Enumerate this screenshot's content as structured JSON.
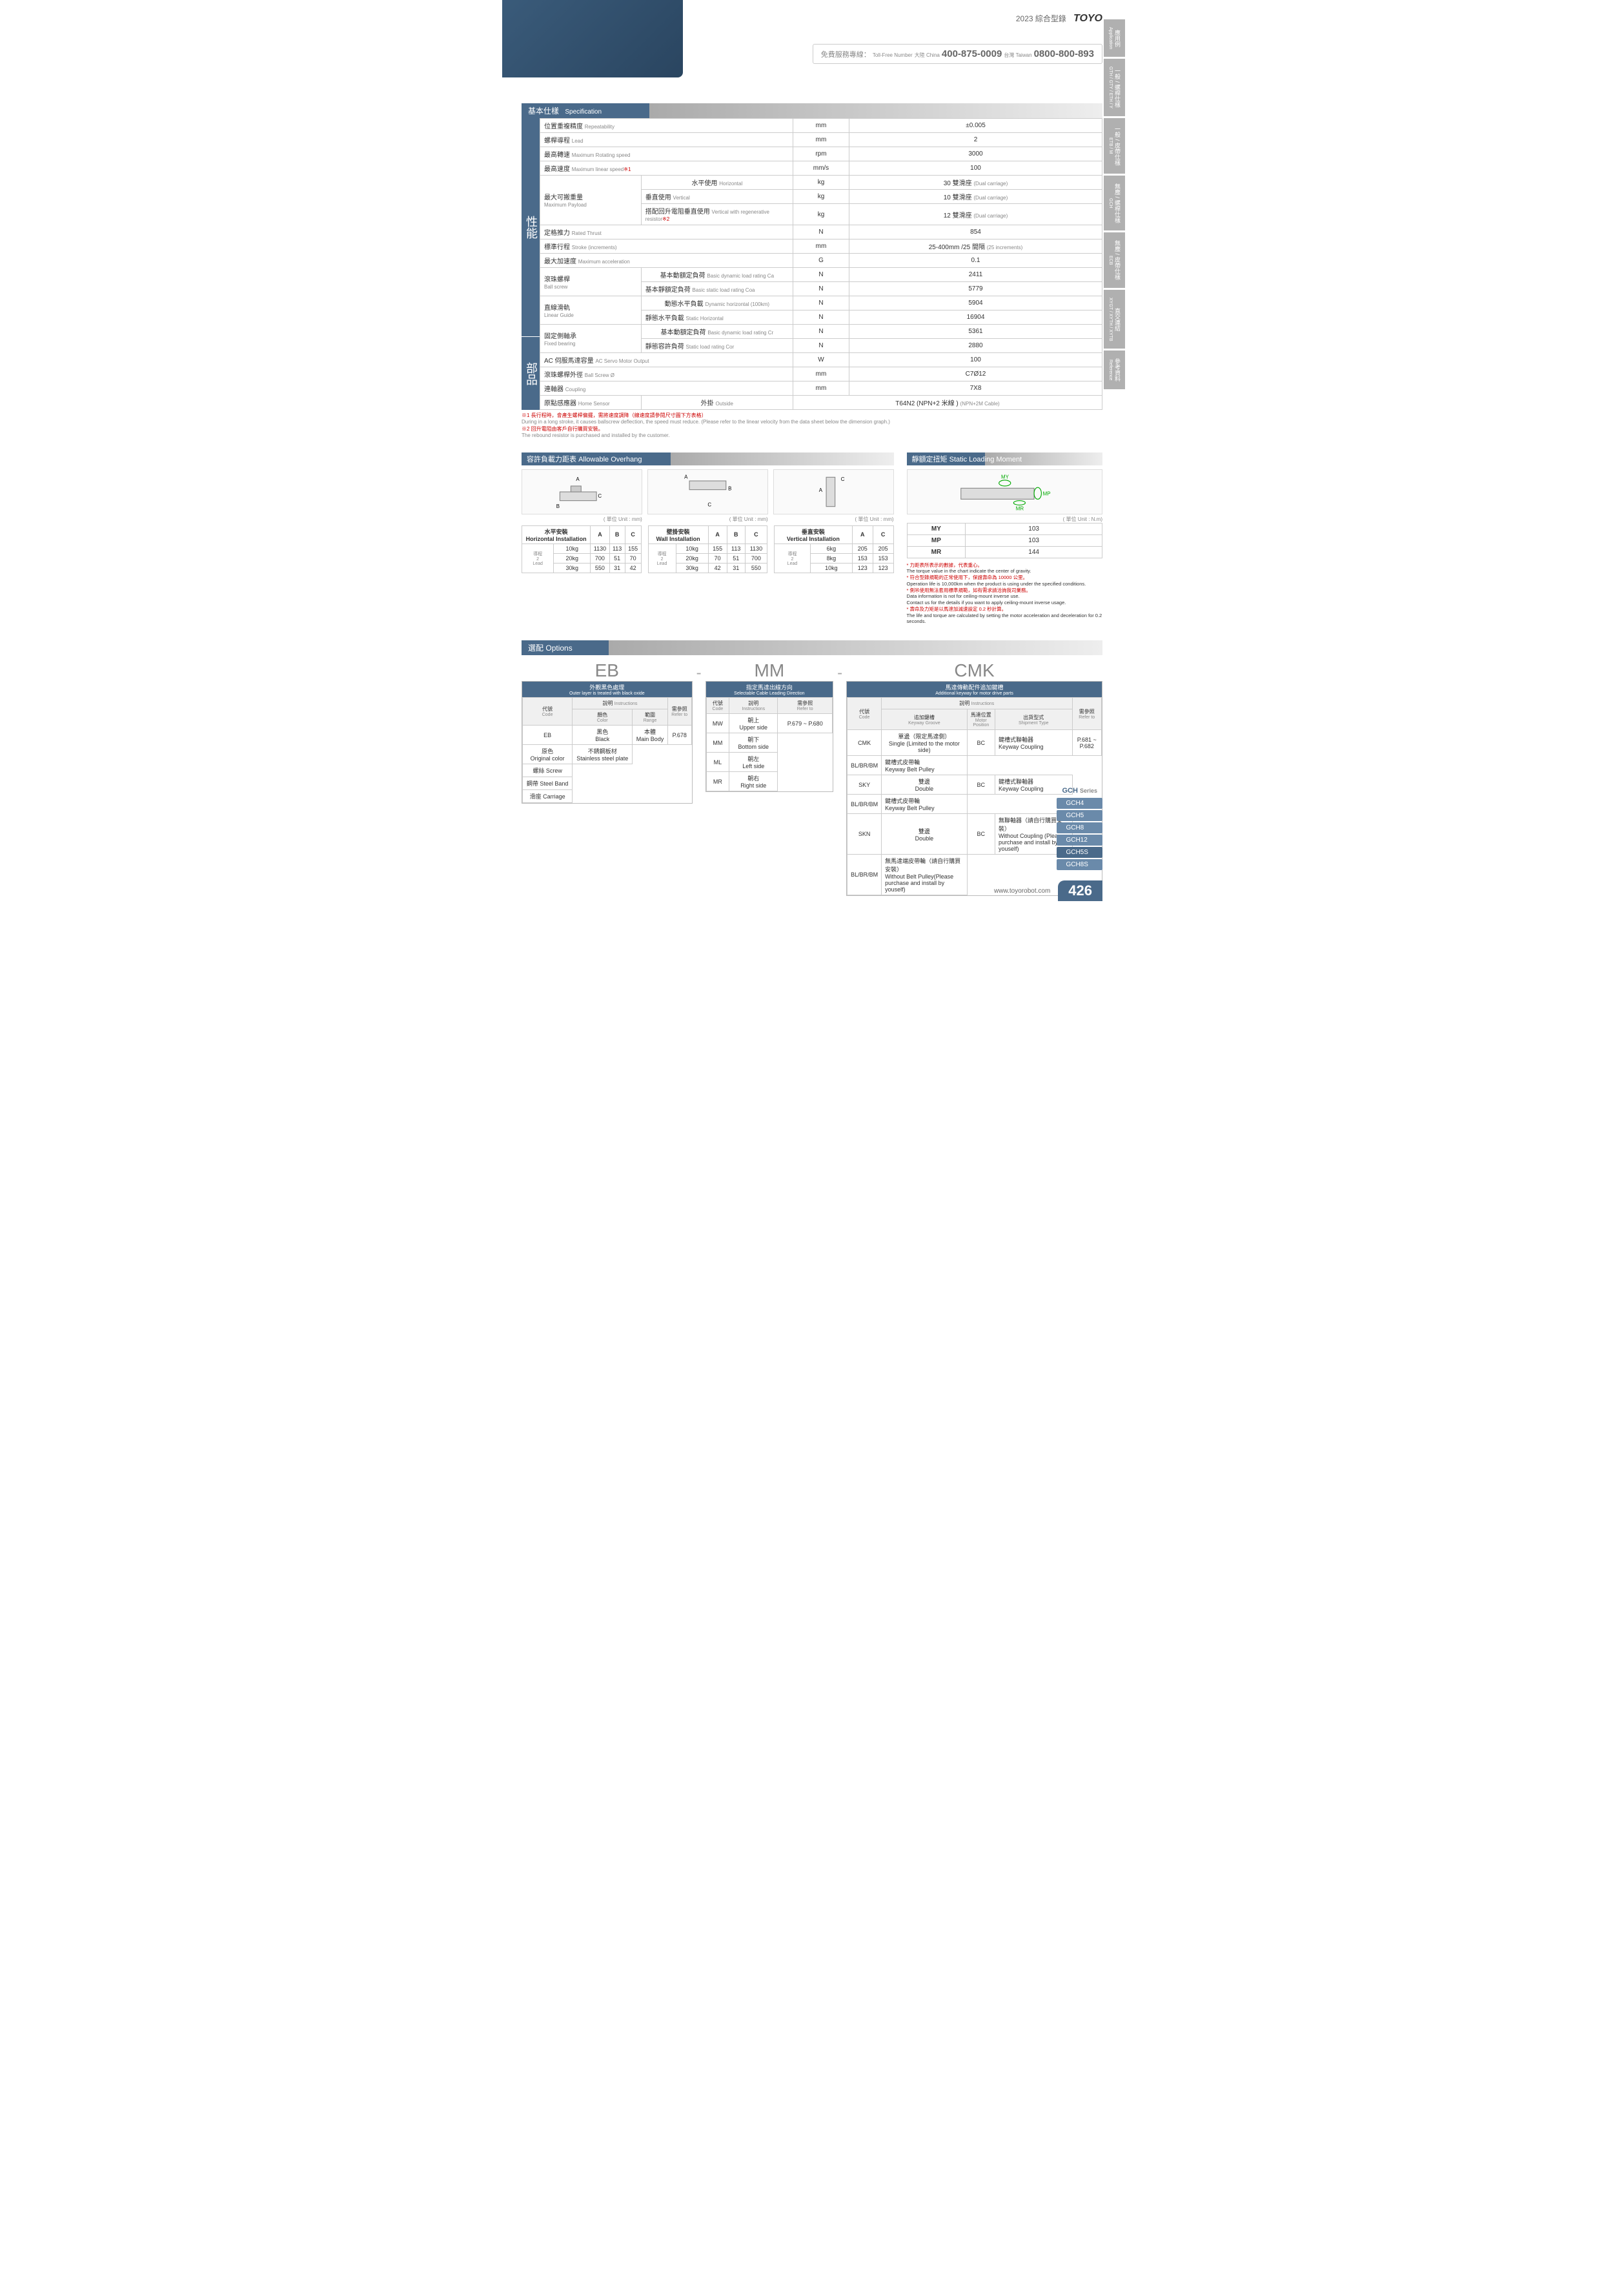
{
  "header": {
    "year": "2023 綜合型錄",
    "brand": "TOYO",
    "phone_label": "免費服務專線：",
    "phone_cn_label": "大陸 China",
    "phone_cn": "400-875-0009",
    "phone_tw_label": "台灣 Taiwan",
    "phone_tw": "0800-800-893",
    "tollfree": "Toll-Free Number"
  },
  "side_tabs": [
    {
      "zh": "應用例",
      "en": "Application"
    },
    {
      "zh": "一般 / 螺桿仕樣",
      "en": "GTH / GTY / ETH / Y"
    },
    {
      "zh": "一般 / 皮帶仕樣",
      "en": "ETB / M"
    },
    {
      "zh": "無塵 / 螺桿仕樣",
      "en": "GCH"
    },
    {
      "zh": "無塵 / 皮帶仕樣",
      "en": "ECB"
    },
    {
      "zh": "直交連結",
      "en": "XYGT / XYTH / XYTB"
    },
    {
      "zh": "參考資料",
      "en": "Reference"
    }
  ],
  "spec": {
    "title_zh": "基本仕樣",
    "title_en": "Specification",
    "vlabel1": "性能",
    "vlabel2": "部品",
    "rows": [
      {
        "label": "位置重複精度",
        "en": "Repeatability",
        "unit": "mm",
        "val": "±0.005"
      },
      {
        "label": "螺桿導程",
        "en": "Lead",
        "unit": "mm",
        "val": "2"
      },
      {
        "label": "最高轉速",
        "en": "Maximum Rotating speed",
        "unit": "rpm",
        "val": "3000"
      },
      {
        "label": "最高速度",
        "en": "Maximum linear speed",
        "note": "※1",
        "unit": "mm/s",
        "val": "100"
      }
    ],
    "payload": {
      "label": "最大可搬重量",
      "en": "Maximum Payload",
      "rows": [
        {
          "sub": "水平使用",
          "sen": "Horizontal",
          "unit": "kg",
          "val": "30 雙滑座",
          "ven": "(Dual carriage)"
        },
        {
          "sub": "垂直使用",
          "sen": "Vertical",
          "unit": "kg",
          "val": "10 雙滑座",
          "ven": "(Dual carriage)"
        },
        {
          "sub": "搭配回升電阻垂直使用",
          "sen": "Vertical with regenerative resistor",
          "note": "※2",
          "unit": "kg",
          "val": "12 雙滑座",
          "ven": "(Dual carriage)"
        }
      ]
    },
    "rows2": [
      {
        "label": "定格推力",
        "en": "Rated Thrust",
        "unit": "N",
        "val": "854"
      },
      {
        "label": "標準行程",
        "en": "Stroke (increments)",
        "unit": "mm",
        "val": "25-400mm /25 間隔",
        "ven": "(25 increments)"
      },
      {
        "label": "最大加速度",
        "en": "Maximum acceleration",
        "unit": "G",
        "val": "0.1"
      }
    ],
    "ballscrew": {
      "label": "滾珠螺桿",
      "en": "Ball screw",
      "rows": [
        {
          "sub": "基本動額定負荷",
          "sen": "Basic dynamic load rating Ca",
          "unit": "N",
          "val": "2411"
        },
        {
          "sub": "基本靜額定負荷",
          "sen": "Basic static load rating Coa",
          "unit": "N",
          "val": "5779"
        }
      ]
    },
    "guide": {
      "label": "直線滑軌",
      "en": "Linear Guide",
      "rows": [
        {
          "sub": "動態水平負載",
          "sen": "Dynamic horizontal (100km)",
          "unit": "N",
          "val": "5904"
        },
        {
          "sub": "靜態水平負載",
          "sen": "Static Horizontal",
          "unit": "N",
          "val": "16904"
        }
      ]
    },
    "bearing": {
      "label": "固定側軸承",
      "en": "Fixed bearing",
      "rows": [
        {
          "sub": "基本動額定負荷",
          "sen": "Basic dynamic load rating Cr",
          "unit": "N",
          "val": "5361"
        },
        {
          "sub": "靜態容許負荷",
          "sen": "Static load rating Cor",
          "unit": "N",
          "val": "2880"
        }
      ]
    },
    "parts": [
      {
        "label": "AC 伺服馬達容量",
        "en": "AC Servo Motor Output",
        "unit": "W",
        "val": "100"
      },
      {
        "label": "滾珠螺桿外徑",
        "en": "Ball Screw Ø",
        "unit": "mm",
        "val": "C7Ø12"
      },
      {
        "label": "連軸器",
        "en": "Coupling",
        "unit": "mm",
        "val": "7X8"
      },
      {
        "label": "原點感應器",
        "en": "Home Sensor",
        "sub": "外掛",
        "sen": "Outside",
        "val": "T64N2 (NPN+2 米線 )",
        "ven": "(NPN+2M Cable)"
      }
    ],
    "notes": [
      {
        "red": true,
        "t": "※1 長行程時，會產生螺桿偏擺，需將速度調降（線速度請參閱尺寸圖下方表格）"
      },
      {
        "t": "During in a long stroke, it causes ballscrew deflection, the speed must reduce. (Please refer to the linear velocity from the data sheet below the dimension graph.)"
      },
      {
        "red": true,
        "t": "※2 回升電阻由客戶自行購買安裝。"
      },
      {
        "t": "The rebound resistor is purchased and installed by the customer."
      }
    ]
  },
  "overhang": {
    "title_zh": "容許負載力距表",
    "title_en": "Allowable Overhang",
    "unit": "( 單位 Unit : mm)",
    "tables": [
      {
        "hdr": "水平安裝",
        "hen": "Horizontal Installation",
        "cols": [
          "A",
          "B",
          "C"
        ],
        "lead_label": "導程",
        "lead_sub": "Lead",
        "lead_val": "2",
        "rows": [
          {
            "w": "10kg",
            "v": [
              "1130",
              "113",
              "155"
            ]
          },
          {
            "w": "20kg",
            "v": [
              "700",
              "51",
              "70"
            ]
          },
          {
            "w": "30kg",
            "v": [
              "550",
              "31",
              "42"
            ]
          }
        ]
      },
      {
        "hdr": "壁掛安裝",
        "hen": "Wall Installation",
        "cols": [
          "A",
          "B",
          "C"
        ],
        "lead_label": "導程",
        "lead_sub": "Lead",
        "lead_val": "2",
        "rows": [
          {
            "w": "10kg",
            "v": [
              "155",
              "113",
              "1130"
            ]
          },
          {
            "w": "20kg",
            "v": [
              "70",
              "51",
              "700"
            ]
          },
          {
            "w": "30kg",
            "v": [
              "42",
              "31",
              "550"
            ]
          }
        ]
      },
      {
        "hdr": "垂直安裝",
        "hen": "Vertical Installation",
        "cols": [
          "A",
          "C"
        ],
        "lead_label": "導程",
        "lead_sub": "Lead",
        "lead_val": "2",
        "rows": [
          {
            "w": "6kg",
            "v": [
              "205",
              "205"
            ]
          },
          {
            "w": "8kg",
            "v": [
              "153",
              "153"
            ]
          },
          {
            "w": "10kg",
            "v": [
              "123",
              "123"
            ]
          }
        ]
      }
    ]
  },
  "moment": {
    "title_zh": "靜額定扭矩",
    "title_en": "Static Loading Moment",
    "unit": "( 單位 Unit : N.m)",
    "rows": [
      {
        "k": "MY",
        "v": "103"
      },
      {
        "k": "MP",
        "v": "103"
      },
      {
        "k": "MR",
        "v": "144"
      }
    ],
    "notes": [
      {
        "red": true,
        "t": "* 力距表所表示的數據，代表重心。"
      },
      {
        "t": "The torque value in the chart indicate the center of gravity."
      },
      {
        "red": true,
        "t": "* 符合型錄規範的正常使用下，保證壽命為 10000 公里。"
      },
      {
        "t": "Operation life is 10,000km when the product is using under the specified conditions."
      },
      {
        "red": true,
        "t": "* 側吊使用無法套用標準規範，如有需求請洽詢我司業務。"
      },
      {
        "t": "Data information is not for ceiling-mount inverse use."
      },
      {
        "t": "Contact us for the details if you want to apply ceiling-mount inverse usage."
      },
      {
        "red": true,
        "t": "* 壽命及力矩是以馬達加減速設定 0.2 秒計算。"
      },
      {
        "t": "The life and torque are calculated by setting the motor acceleration and deceleration for 0.2 seconds."
      }
    ]
  },
  "options": {
    "title_zh": "選配",
    "title_en": "Options",
    "eb": {
      "code": "EB",
      "title_zh": "外觀黑色處理",
      "title_en": "Outer layer is treated with black oxide",
      "h_code": "代號",
      "h_code_en": "Code",
      "h_inst": "說明",
      "h_inst_en": "Instructions",
      "h_color": "顏色",
      "h_color_en": "Color",
      "h_range": "範圍",
      "h_range_en": "Range",
      "h_ref": "需參照",
      "h_ref_en": "Refer to",
      "rows": [
        {
          "code": "",
          "color": "黑色",
          "color_en": "Black",
          "range": "本體",
          "range_en": "Main Body",
          "ref": ""
        },
        {
          "code": "EB",
          "color": "原色",
          "color_en": "Original color",
          "range": "不銹鋼板材",
          "range_en": "Stainless steel plate",
          "ref": "P.678"
        },
        {
          "code": "",
          "color": "",
          "range": "螺絲",
          "range_en": "Screw",
          "ref": ""
        },
        {
          "code": "",
          "color": "",
          "range": "鋼帶",
          "range_en": "Steel Band",
          "ref": ""
        },
        {
          "code": "",
          "color": "",
          "range": "滑座",
          "range_en": "Carriage",
          "ref": ""
        }
      ]
    },
    "mm": {
      "code": "MM",
      "title_zh": "指定馬達出線方向",
      "title_en": "Selectable Cable Leading Direction",
      "h_code": "代號",
      "h_code_en": "Code",
      "h_inst": "說明",
      "h_inst_en": "Instructions",
      "h_ref": "需參照",
      "h_ref_en": "Refer to",
      "ref": "P.679 ~ P.680",
      "rows": [
        {
          "code": "MW",
          "inst": "朝上",
          "inst_en": "Upper side"
        },
        {
          "code": "MM",
          "inst": "朝下",
          "inst_en": "Bottom side"
        },
        {
          "code": "ML",
          "inst": "朝左",
          "inst_en": "Left side"
        },
        {
          "code": "MR",
          "inst": "朝右",
          "inst_en": "Right side"
        }
      ]
    },
    "cmk": {
      "code": "CMK",
      "title_zh": "馬達傳動配件追加鍵槽",
      "title_en": "Additional keyway for motor drive parts",
      "h_code": "代號",
      "h_code_en": "Code",
      "h_inst": "說明",
      "h_inst_en": "Instructions",
      "h_key": "追加鍵槽",
      "h_key_en": "Keyway Groove",
      "h_pos": "馬達位置",
      "h_pos_en": "Motor Position",
      "h_ship": "出貨型式",
      "h_ship_en": "Shipment Type",
      "h_ref": "需參照",
      "h_ref_en": "Refer to",
      "ref": "P.681 ~ P.682",
      "rows": [
        {
          "code": "CMK",
          "key": "單邊（限定馬達側）",
          "key_en": "Single (Limited to the motor side)",
          "pos": "BC",
          "ship": "鍵槽式聯軸器",
          "ship_en": "Keyway Coupling"
        },
        {
          "code": "",
          "key": "",
          "pos": "BL/BR/BM",
          "ship": "鍵槽式皮帶輪",
          "ship_en": "Keyway Belt Pulley"
        },
        {
          "code": "SKY",
          "key": "雙邊",
          "key_en": "Double",
          "pos": "BC",
          "ship": "鍵槽式聯軸器",
          "ship_en": "Keyway Coupling"
        },
        {
          "code": "",
          "key": "",
          "pos": "BL/BR/BM",
          "ship": "鍵槽式皮帶輪",
          "ship_en": "Keyway Belt Pulley"
        },
        {
          "code": "SKN",
          "key": "雙邊",
          "key_en": "Double",
          "pos": "BC",
          "ship": "無聯軸器（請自行購買安裝）",
          "ship_en": "Without Coupling (Please purchase and install by youself)"
        },
        {
          "code": "",
          "key": "",
          "pos": "BL/BR/BM",
          "ship": "無馬達端皮帶輪（請自行購買安裝）",
          "ship_en": "Without Belt Pulley(Please purchase and install by youself)"
        }
      ]
    }
  },
  "series": {
    "hdr": "GCH",
    "hdr_suffix": "Series",
    "items": [
      "GCH4",
      "GCH5",
      "GCH8",
      "GCH12",
      "GCH5S",
      "GCH8S"
    ]
  },
  "footer": {
    "url": "www.toyorobot.com",
    "page": "426"
  },
  "colors": {
    "primary": "#4a6a8a",
    "tab_gray": "#b0b0b0"
  }
}
